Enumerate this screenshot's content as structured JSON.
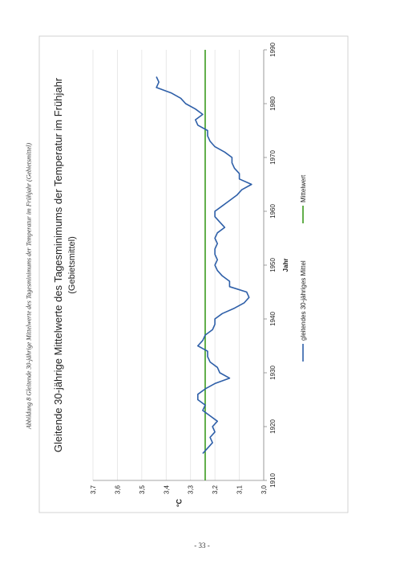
{
  "caption": "Abbildung 8 Gleitende 30-jährige Mittelwerte des Tagesminimums der Temperatur im Frühjahr (Gebietsmittel)",
  "page_number": "- 33 -",
  "colors": {
    "series_line": "#2e5fa8",
    "mean_line": "#3a9a1e",
    "grid": "#e2e2e2",
    "axis": "#888888"
  },
  "chart_data": {
    "type": "line",
    "title": "Gleitende 30-jährige Mittelwerte des Tagesminimums der Temperatur im Frühjahr",
    "subtitle": "(Gebietsmittel)",
    "xlabel": "Jahr",
    "ylabel": "°C",
    "xlim": [
      1910,
      1990
    ],
    "ylim": [
      3.0,
      3.7
    ],
    "x_ticks": [
      "1910",
      "1920",
      "1930",
      "1940",
      "1950",
      "1960",
      "1970",
      "1980",
      "1990"
    ],
    "y_ticks": [
      "3,0",
      "3,1",
      "3,2",
      "3,3",
      "3,4",
      "3,5",
      "3,6",
      "3,7"
    ],
    "grid": "horizontal",
    "legend_position": "bottom",
    "series": [
      {
        "name": "gleitendes 30-jähriges Mittel",
        "x": [
          1915,
          1916,
          1917,
          1918,
          1919,
          1920,
          1921,
          1922,
          1923,
          1924,
          1925,
          1926,
          1927,
          1928,
          1929,
          1930,
          1931,
          1932,
          1933,
          1934,
          1935,
          1936,
          1937,
          1938,
          1939,
          1940,
          1941,
          1942,
          1943,
          1944,
          1945,
          1946,
          1947,
          1948,
          1949,
          1950,
          1951,
          1952,
          1953,
          1954,
          1955,
          1956,
          1957,
          1958,
          1959,
          1960,
          1961,
          1962,
          1963,
          1964,
          1965,
          1966,
          1967,
          1968,
          1969,
          1970,
          1971,
          1972,
          1973,
          1974,
          1975,
          1976,
          1977,
          1978,
          1979,
          1980,
          1981,
          1982,
          1983,
          1984,
          1985
        ],
        "values": [
          3.25,
          3.23,
          3.21,
          3.22,
          3.2,
          3.21,
          3.19,
          3.22,
          3.25,
          3.24,
          3.27,
          3.27,
          3.24,
          3.2,
          3.14,
          3.18,
          3.19,
          3.22,
          3.23,
          3.23,
          3.27,
          3.25,
          3.24,
          3.21,
          3.2,
          3.2,
          3.17,
          3.12,
          3.08,
          3.06,
          3.07,
          3.14,
          3.14,
          3.17,
          3.19,
          3.2,
          3.19,
          3.2,
          3.2,
          3.19,
          3.2,
          3.19,
          3.16,
          3.18,
          3.2,
          3.2,
          3.17,
          3.14,
          3.11,
          3.09,
          3.05,
          3.1,
          3.1,
          3.12,
          3.13,
          3.13,
          3.16,
          3.2,
          3.22,
          3.23,
          3.23,
          3.27,
          3.28,
          3.25,
          3.28,
          3.32,
          3.34,
          3.38,
          3.44,
          3.43,
          3.44
        ]
      },
      {
        "name": "Mittelwert",
        "x": [
          1910,
          1990
        ],
        "values": [
          3.24,
          3.24
        ]
      }
    ]
  }
}
